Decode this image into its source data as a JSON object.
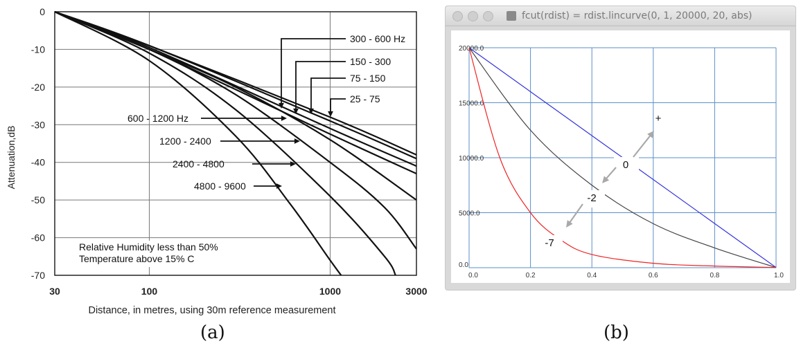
{
  "captions": {
    "a": "(a)",
    "b": "(b)"
  },
  "window": {
    "title": "fcut(rdist) = rdist.lincurve(0, 1, 20000, 20, abs)"
  },
  "chart_data": [
    {
      "type": "line",
      "title": "",
      "xlabel": "Distance, in metres, using 30m reference measurement",
      "ylabel": "Attenuation,dB",
      "xscale": "log",
      "xlim": [
        30,
        3000
      ],
      "ylim": [
        -70,
        0
      ],
      "xticks": [
        "30",
        "100",
        "1000",
        "3000"
      ],
      "yticks": [
        "0",
        "-10",
        "-20",
        "-30",
        "-40",
        "-50",
        "-60",
        "-70"
      ],
      "grid": true,
      "note": [
        "Relative Humidity less than 50%",
        "Temperature above 15% C"
      ],
      "series": [
        {
          "name": "25 - 75",
          "x": [
            30,
            100,
            1000,
            3000
          ],
          "y": [
            0,
            -9,
            -28,
            -38
          ]
        },
        {
          "name": "75 - 150",
          "x": [
            30,
            100,
            1000,
            3000
          ],
          "y": [
            0,
            -9,
            -29,
            -39
          ]
        },
        {
          "name": "150 - 300",
          "x": [
            30,
            100,
            1000,
            3000
          ],
          "y": [
            0,
            -9.5,
            -31,
            -41
          ]
        },
        {
          "name": "300 - 600 Hz",
          "x": [
            30,
            100,
            1000,
            3000
          ],
          "y": [
            0,
            -10,
            -32.5,
            -43
          ]
        },
        {
          "name": "600 - 1200 Hz",
          "x": [
            30,
            100,
            300,
            1000,
            3000
          ],
          "y": [
            0,
            -10,
            -20,
            -34,
            -50
          ]
        },
        {
          "name": "1200 - 2400",
          "x": [
            30,
            100,
            300,
            1000,
            2000,
            3000
          ],
          "y": [
            0,
            -10,
            -22,
            -40,
            -52,
            -63
          ]
        },
        {
          "name": "2400 - 4800",
          "x": [
            30,
            100,
            300,
            1000,
            2000,
            2300
          ],
          "y": [
            0,
            -11,
            -26,
            -49,
            -65,
            -70
          ]
        },
        {
          "name": "4800 - 9600",
          "x": [
            30,
            100,
            300,
            600,
            1000,
            1150
          ],
          "y": [
            0,
            -13,
            -33,
            -51,
            -66,
            -70
          ]
        }
      ],
      "annotations": [
        {
          "text": "300 - 600 Hz",
          "target_series": "300 - 600 Hz"
        },
        {
          "text": "150 - 300",
          "target_series": "150 - 300"
        },
        {
          "text": "75 - 150",
          "target_series": "75 - 150"
        },
        {
          "text": "25 - 75",
          "target_series": "25 - 75"
        },
        {
          "text": "600 - 1200 Hz",
          "target_series": "600 - 1200 Hz"
        },
        {
          "text": "1200 - 2400",
          "target_series": "1200 - 2400"
        },
        {
          "text": "2400 - 4800",
          "target_series": "2400 - 4800"
        },
        {
          "text": "4800 - 9600",
          "target_series": "4800 - 9600"
        }
      ]
    },
    {
      "type": "line",
      "title": "",
      "xlim": [
        0,
        1
      ],
      "ylim": [
        0,
        20000
      ],
      "xticks": [
        "0.0",
        "0.2",
        "0.4",
        "0.6",
        "0.8",
        "1.0"
      ],
      "yticks": [
        "0.0",
        "5000.0",
        "10000.0",
        "15000.0",
        "20000.0"
      ],
      "grid": true,
      "series": [
        {
          "curve": 0,
          "color": "#3333dd",
          "x": [
            0,
            1
          ],
          "y": [
            20000,
            20
          ]
        },
        {
          "curve": -2,
          "color": "#444444",
          "x": [
            0,
            0.2,
            0.4,
            0.6,
            0.8,
            1.0
          ],
          "y": [
            20000,
            12500,
            7500,
            4000,
            1800,
            20
          ]
        },
        {
          "curve": -7,
          "color": "#ee2222",
          "x": [
            0,
            0.1,
            0.2,
            0.3,
            0.4,
            0.6,
            0.8,
            1.0
          ],
          "y": [
            20000,
            10000,
            5000,
            2500,
            1200,
            400,
            150,
            20
          ]
        }
      ],
      "annotations": [
        "+",
        "0",
        "-2",
        "-7"
      ]
    }
  ],
  "colors": {
    "grid_b": "#5b8fc9",
    "plot_bg_b": "#ffffff",
    "arrow_b": "#a9a9a9"
  }
}
